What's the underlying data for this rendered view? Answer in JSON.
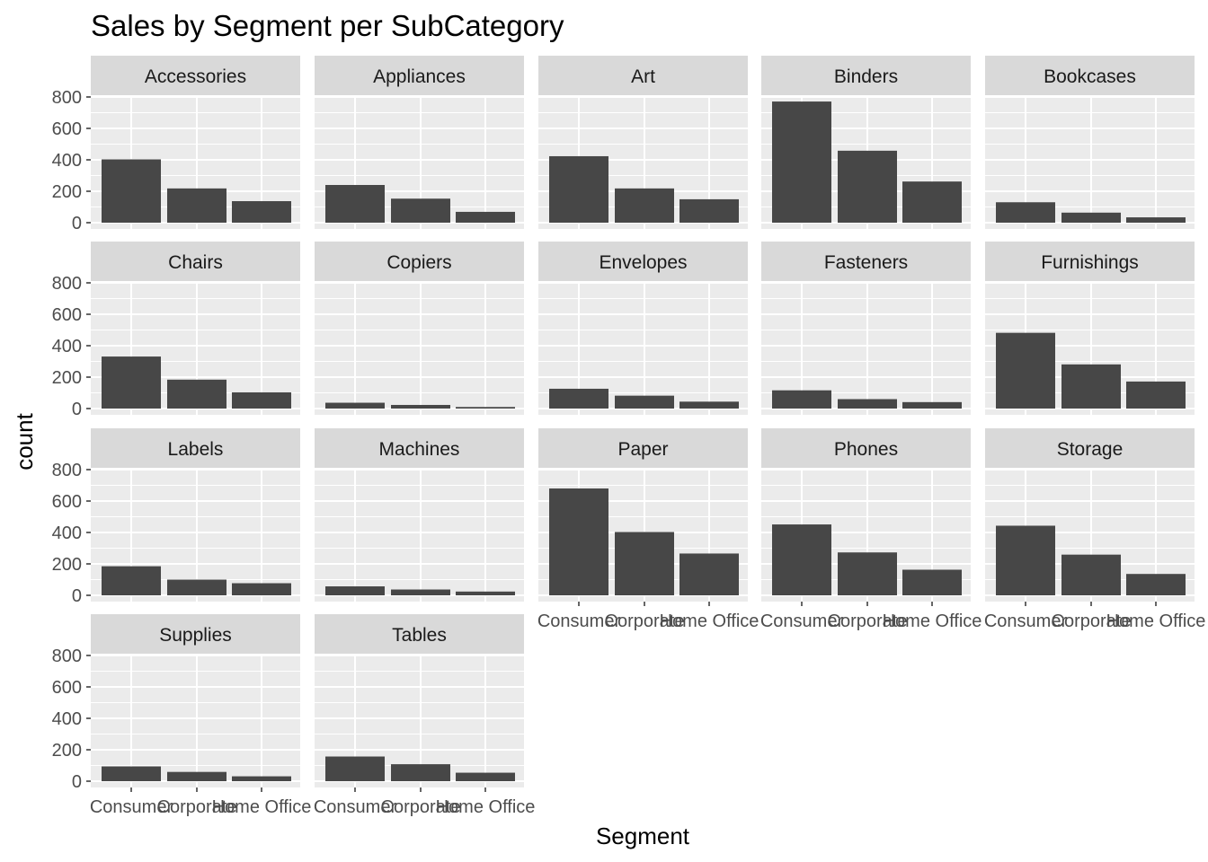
{
  "chart_data": {
    "type": "bar",
    "title": "Sales by Segment per SubCategory",
    "xlabel": "Segment",
    "ylabel": "count",
    "categories": [
      "Consumer",
      "Corporate",
      "Home Office"
    ],
    "ylim": [
      0,
      880
    ],
    "yticks": [
      "0",
      "200",
      "400",
      "600",
      "800"
    ],
    "grid": true,
    "facet_columns": 5,
    "colors": {
      "panel_bg": "#ebebeb",
      "strip_bg": "#d9d9d9",
      "grid": "#ffffff",
      "bar": "#474747",
      "tick": "#333333"
    },
    "panels": [
      {
        "name": "Accessories",
        "values": [
          403,
          218,
          137
        ]
      },
      {
        "name": "Appliances",
        "values": [
          240,
          153,
          69
        ]
      },
      {
        "name": "Art",
        "values": [
          423,
          218,
          149
        ]
      },
      {
        "name": "Binders",
        "values": [
          771,
          458,
          262
        ]
      },
      {
        "name": "Bookcases",
        "values": [
          130,
          64,
          34
        ]
      },
      {
        "name": "Chairs",
        "values": [
          331,
          184,
          103
        ]
      },
      {
        "name": "Copiers",
        "values": [
          37,
          23,
          10
        ]
      },
      {
        "name": "Envelopes",
        "values": [
          126,
          82,
          44
        ]
      },
      {
        "name": "Fasteners",
        "values": [
          116,
          60,
          41
        ]
      },
      {
        "name": "Furnishings",
        "values": [
          482,
          281,
          172
        ]
      },
      {
        "name": "Labels",
        "values": [
          185,
          100,
          77
        ]
      },
      {
        "name": "Machines",
        "values": [
          57,
          37,
          24
        ]
      },
      {
        "name": "Paper",
        "values": [
          680,
          403,
          266
        ]
      },
      {
        "name": "Phones",
        "values": [
          451,
          273,
          163
        ]
      },
      {
        "name": "Storage",
        "values": [
          443,
          259,
          136
        ]
      },
      {
        "name": "Supplies",
        "values": [
          94,
          59,
          31
        ]
      },
      {
        "name": "Tables",
        "values": [
          157,
          108,
          54
        ]
      }
    ]
  }
}
